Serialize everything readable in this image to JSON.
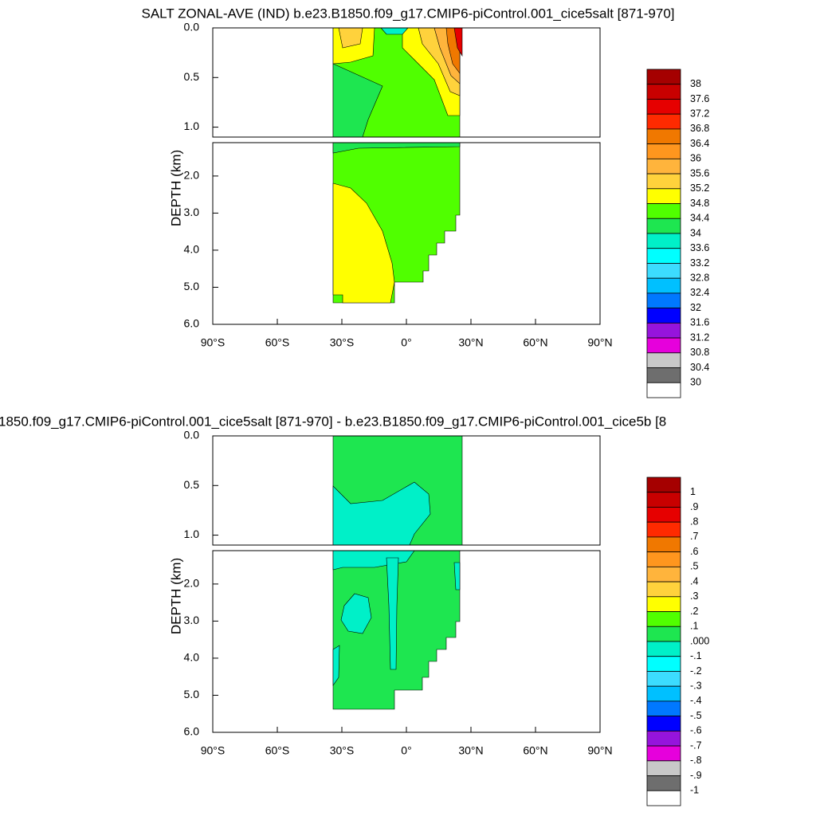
{
  "chart_data": [
    {
      "type": "contour",
      "title": "SALT ZONAL-AVE (IND) b.e23.B1850.f09_g17.CMIP6-piControl.001_cice5salt [871-970]",
      "ylabel": "DEPTH (km)",
      "xlim": [
        -90,
        90
      ],
      "xticks": [
        {
          "value": -90,
          "label": "90°S"
        },
        {
          "value": -60,
          "label": "60°S"
        },
        {
          "value": -30,
          "label": "30°S"
        },
        {
          "value": 0,
          "label": "0°"
        },
        {
          "value": 30,
          "label": "30°N"
        },
        {
          "value": 60,
          "label": "60°N"
        },
        {
          "value": 90,
          "label": "90°N"
        }
      ],
      "ylim_upper": [
        0,
        1.1
      ],
      "ylim_lower": [
        1.1,
        6
      ],
      "yticks": [
        {
          "value": 0,
          "label": "0.0"
        },
        0.5,
        {
          "value": 1,
          "label": "1.0"
        },
        {
          "value": 2,
          "label": "2.0"
        },
        {
          "value": 3,
          "label": "3.0"
        },
        {
          "value": 4,
          "label": "4.0"
        },
        {
          "value": 5,
          "label": "5.0"
        },
        {
          "value": 6,
          "label": "6.0"
        }
      ],
      "colorbar": {
        "levels": [
          38,
          37.6,
          37.2,
          36.8,
          36.4,
          36,
          35.6,
          35.2,
          34.8,
          34.4,
          34,
          33.6,
          33.2,
          32.8,
          32.4,
          32,
          31.6,
          31.2,
          30.8,
          30.4,
          30
        ],
        "colors": [
          "#a50000",
          "#c80000",
          "#e60000",
          "#ff2a00",
          "#f07800",
          "#ff961e",
          "#ffb43c",
          "#ffd23c",
          "#ffff00",
          "#50ff00",
          "#1ee650",
          "#00f0c8",
          "#00ffff",
          "#3cdcff",
          "#00c0ff",
          "#0078ff",
          "#0000ff",
          "#9614dc",
          "#e600dc",
          "#c8c8c8",
          "#6e6e6e",
          "#ffffff"
        ]
      }
    },
    {
      "type": "contour",
      "title": "1850.f09_g17.CMIP6-piControl.001_cice5salt [871-970] - b.e23.B1850.f09_g17.CMIP6-piControl.001_cice5b [8",
      "ylabel": "DEPTH (km)",
      "xlim": [
        -90,
        90
      ],
      "xticks": [
        {
          "value": -90,
          "label": "90°S"
        },
        {
          "value": -60,
          "label": "60°S"
        },
        {
          "value": -30,
          "label": "30°S"
        },
        {
          "value": 0,
          "label": "0°"
        },
        {
          "value": 30,
          "label": "30°N"
        },
        {
          "value": 60,
          "label": "60°N"
        },
        {
          "value": 90,
          "label": "90°N"
        }
      ],
      "ylim_upper": [
        0,
        1.1
      ],
      "ylim_lower": [
        1.1,
        6
      ],
      "yticks": [
        {
          "value": 0,
          "label": "0.0"
        },
        0.5,
        {
          "value": 1,
          "label": "1.0"
        },
        {
          "value": 2,
          "label": "2.0"
        },
        {
          "value": 3,
          "label": "3.0"
        },
        {
          "value": 4,
          "label": "4.0"
        },
        {
          "value": 5,
          "label": "5.0"
        },
        {
          "value": 6,
          "label": "6.0"
        }
      ],
      "colorbar": {
        "levels": [
          1,
          {
            "value": 0.9,
            "label": ".9"
          },
          {
            "value": 0.8,
            "label": ".8"
          },
          {
            "value": 0.7,
            "label": ".7"
          },
          {
            "value": 0.6,
            "label": ".6"
          },
          {
            "value": 0.5,
            "label": ".5"
          },
          {
            "value": 0.4,
            "label": ".4"
          },
          {
            "value": 0.3,
            "label": ".3"
          },
          {
            "value": 0.2,
            "label": ".2"
          },
          {
            "value": 0.1,
            "label": ".1"
          },
          {
            "value": 0,
            "label": ".000"
          },
          {
            "value": -0.1,
            "label": "-.1"
          },
          {
            "value": -0.2,
            "label": "-.2"
          },
          {
            "value": -0.3,
            "label": "-.3"
          },
          {
            "value": -0.4,
            "label": "-.4"
          },
          {
            "value": -0.5,
            "label": "-.5"
          },
          {
            "value": -0.6,
            "label": "-.6"
          },
          {
            "value": -0.7,
            "label": "-.7"
          },
          {
            "value": -0.8,
            "label": "-.8"
          },
          {
            "value": -0.9,
            "label": "-.9"
          },
          -1
        ],
        "colors": [
          "#a50000",
          "#c80000",
          "#e60000",
          "#ff2a00",
          "#f07800",
          "#ff961e",
          "#ffb43c",
          "#ffd23c",
          "#ffff00",
          "#50ff00",
          "#1ee650",
          "#00f0c8",
          "#00ffff",
          "#3cdcff",
          "#00c0ff",
          "#0078ff",
          "#0000ff",
          "#9614dc",
          "#e600dc",
          "#c8c8c8",
          "#6e6e6e",
          "#ffffff"
        ]
      }
    }
  ]
}
